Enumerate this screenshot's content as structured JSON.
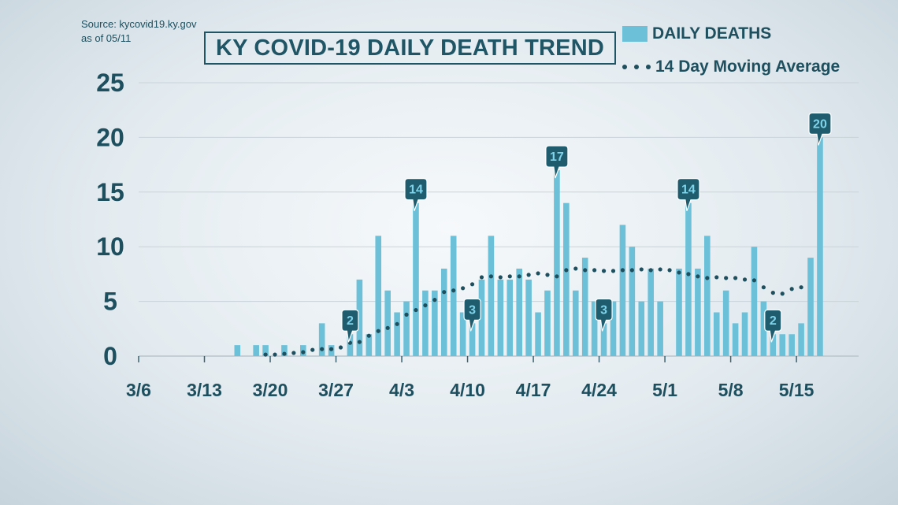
{
  "source": {
    "line1": "Source: kycovid19.ky.gov",
    "line2": "as of 05/11"
  },
  "colors": {
    "bar": "#6cc1d9",
    "axis_text": "#1d4f5e",
    "avg_line": "#1d4f5e",
    "callout": "#1f5d6e",
    "grid": "#c9d3d9"
  },
  "chart_data": {
    "type": "bar",
    "title": "KY COVID-19 DAILY DEATH TREND",
    "ylim": [
      0,
      25
    ],
    "yticks": [
      "0",
      "5",
      "10",
      "15",
      "20",
      "25"
    ],
    "x_start": "3/6",
    "xticks": [
      "3/6",
      "3/13",
      "3/20",
      "3/27",
      "4/3",
      "4/10",
      "4/17",
      "4/24",
      "5/1",
      "5/8",
      "5/15"
    ],
    "grid": "horizontal",
    "legend_position": "top-right",
    "series": [
      {
        "name": "DAILY DEATHS",
        "type": "bar",
        "values": [
          0,
          0,
          0,
          0,
          0,
          0,
          0,
          0,
          0,
          0,
          1,
          0,
          1,
          1,
          0,
          1,
          0,
          1,
          0,
          3,
          1,
          0,
          2,
          7,
          2,
          11,
          6,
          4,
          5,
          14,
          6,
          6,
          8,
          11,
          4,
          3,
          7,
          11,
          7,
          7,
          8,
          7,
          4,
          6,
          17,
          14,
          6,
          9,
          5,
          3,
          5,
          12,
          10,
          5,
          8,
          5,
          0,
          8,
          14,
          8,
          11,
          4,
          6,
          3,
          4,
          10,
          5,
          2,
          2,
          2,
          3,
          9,
          20
        ]
      },
      {
        "name": "14 Day Moving Average",
        "type": "line",
        "style": "dotted",
        "start_index": 13,
        "values": [
          0.14,
          0.14,
          0.21,
          0.29,
          0.36,
          0.57,
          0.64,
          0.64,
          0.79,
          1.21,
          1.29,
          1.86,
          2.29,
          2.57,
          2.93,
          3.79,
          4.21,
          4.64,
          5.14,
          5.86,
          6.0,
          6.21,
          6.57,
          7.21,
          7.29,
          7.21,
          7.29,
          7.29,
          7.43,
          7.57,
          7.43,
          7.29,
          7.86,
          8.0,
          7.86,
          7.86,
          7.79,
          7.79,
          7.86,
          7.86,
          7.93,
          7.86,
          7.93,
          7.86,
          7.64,
          7.5,
          7.29,
          7.14,
          7.21,
          7.14,
          7.14,
          7.0,
          6.93,
          6.29,
          5.79,
          5.71,
          6.14,
          6.29
        ]
      }
    ],
    "annotations": [
      {
        "index": 22,
        "label": "2"
      },
      {
        "index": 29,
        "label": "14"
      },
      {
        "index": 35,
        "label": "3"
      },
      {
        "index": 44,
        "label": "17"
      },
      {
        "index": 49,
        "label": "3"
      },
      {
        "index": 58,
        "label": "14"
      },
      {
        "index": 67,
        "label": "2"
      },
      {
        "index": 72,
        "label": "20"
      }
    ]
  }
}
